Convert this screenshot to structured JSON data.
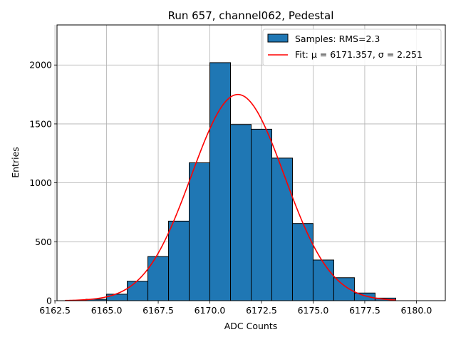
{
  "chart_data": {
    "type": "bar",
    "title": "Run 657, channel062, Pedestal",
    "xlabel": "ADC Counts",
    "ylabel": "Entries",
    "xlim": [
      6162.6,
      6181.4
    ],
    "ylim": [
      0,
      2340
    ],
    "grid": true,
    "legend_position": "top-right",
    "x_ticks": [
      6162.5,
      6165.0,
      6167.5,
      6170.0,
      6172.5,
      6175.0,
      6177.5,
      6180.0
    ],
    "x_tick_labels": [
      "6162.5",
      "6165.0",
      "6167.5",
      "6170.0",
      "6172.5",
      "6175.0",
      "6177.5",
      "6180.0"
    ],
    "y_ticks": [
      0,
      500,
      1000,
      1500,
      2000
    ],
    "y_tick_labels": [
      "0",
      "500",
      "1000",
      "1500",
      "2000"
    ],
    "histogram": {
      "name": "Samples: RMS=2.3",
      "color": "#1f77b4",
      "edge_color": "#000000",
      "bins": [
        {
          "x0": 6163,
          "x1": 6164,
          "count": 2
        },
        {
          "x0": 6164,
          "x1": 6165,
          "count": 12
        },
        {
          "x0": 6165,
          "x1": 6166,
          "count": 55
        },
        {
          "x0": 6166,
          "x1": 6167,
          "count": 165
        },
        {
          "x0": 6167,
          "x1": 6168,
          "count": 375
        },
        {
          "x0": 6168,
          "x1": 6169,
          "count": 675
        },
        {
          "x0": 6169,
          "x1": 6170,
          "count": 1170
        },
        {
          "x0": 6170,
          "x1": 6171,
          "count": 2020
        },
        {
          "x0": 6171,
          "x1": 6172,
          "count": 1495
        },
        {
          "x0": 6172,
          "x1": 6173,
          "count": 1455
        },
        {
          "x0": 6173,
          "x1": 6174,
          "count": 1210
        },
        {
          "x0": 6174,
          "x1": 6175,
          "count": 655
        },
        {
          "x0": 6175,
          "x1": 6176,
          "count": 345
        },
        {
          "x0": 6176,
          "x1": 6177,
          "count": 195
        },
        {
          "x0": 6177,
          "x1": 6178,
          "count": 65
        },
        {
          "x0": 6178,
          "x1": 6179,
          "count": 22
        },
        {
          "x0": 6179,
          "x1": 6180,
          "count": 0
        },
        {
          "x0": 6180,
          "x1": 6181,
          "count": 0
        }
      ]
    },
    "fit": {
      "name": "Fit: μ = 6171.357, σ = 2.251",
      "color": "#ff0000",
      "mu": 6171.357,
      "sigma": 2.251,
      "amplitude": 1750,
      "x_range": [
        6163,
        6179
      ]
    }
  }
}
